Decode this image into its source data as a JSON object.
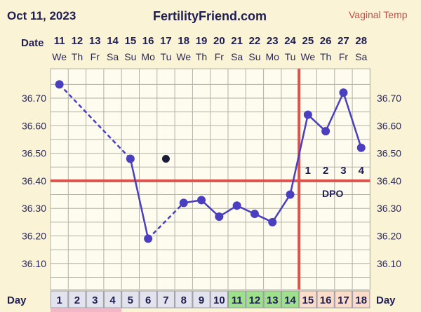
{
  "header": {
    "date": "Oct 11, 2023",
    "site": "FertilityFriend.com",
    "temp_type": "Vaginal Temp"
  },
  "labels": {
    "date_row": "Date",
    "day_row": "Day",
    "dpo": "DPO"
  },
  "colors": {
    "background": "#fbf3d6",
    "plot_bg": "#fefcef",
    "grid": "#b3b0a6",
    "line": "#4a3fc0",
    "coverline": "#d9534f",
    "ovulation": "#d9534f",
    "discarded_point": "#1a1a3a",
    "day_box_default": "#e3e3ee",
    "day_box_fertile": "#9ee08c",
    "day_box_luteal": "#fbdcc8"
  },
  "chart_data": {
    "type": "line",
    "cycle_days": [
      1,
      2,
      3,
      4,
      5,
      6,
      7,
      8,
      9,
      10,
      11,
      12,
      13,
      14,
      15,
      16,
      17,
      18
    ],
    "dates": [
      "11",
      "12",
      "13",
      "14",
      "15",
      "16",
      "17",
      "18",
      "19",
      "20",
      "21",
      "22",
      "23",
      "24",
      "25",
      "26",
      "27",
      "28"
    ],
    "weekdays": [
      "We",
      "Th",
      "Fr",
      "Sa",
      "Su",
      "Mo",
      "Tu",
      "We",
      "Th",
      "Fr",
      "Sa",
      "Su",
      "Mo",
      "Tu",
      "We",
      "Th",
      "Fr",
      "Sa"
    ],
    "temps": [
      36.75,
      null,
      null,
      null,
      36.48,
      36.19,
      null,
      36.32,
      36.33,
      36.27,
      36.31,
      36.28,
      36.25,
      36.35,
      36.64,
      36.58,
      36.72,
      36.52
    ],
    "discarded": [
      {
        "day": 7,
        "temp": 36.48
      }
    ],
    "dashed_gaps": [
      [
        1,
        5
      ],
      [
        6,
        8
      ]
    ],
    "yticks": [
      "36.70",
      "36.60",
      "36.50",
      "36.40",
      "36.30",
      "36.20",
      "36.10"
    ],
    "ylim": [
      36.03,
      36.8
    ],
    "coverline": 36.4,
    "ovulation_day": 14,
    "dpo": [
      "1",
      "2",
      "3",
      "4"
    ],
    "day_box_types": [
      "default",
      "default",
      "default",
      "default",
      "default",
      "default",
      "default",
      "default",
      "default",
      "default",
      "fertile",
      "fertile",
      "fertile",
      "fertile",
      "luteal",
      "luteal",
      "luteal",
      "luteal"
    ]
  }
}
